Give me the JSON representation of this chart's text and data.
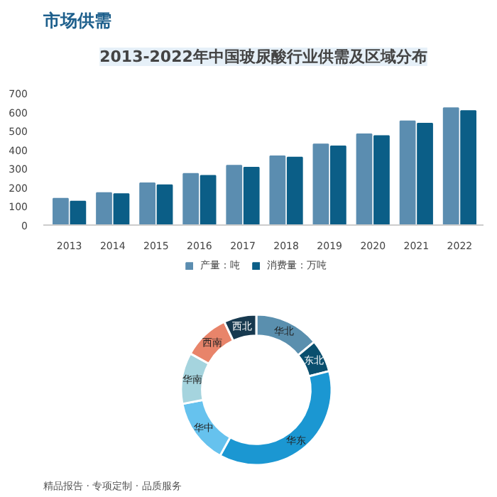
{
  "chart_data": [
    {
      "type": "bar",
      "title": "2013-2022年中国玻尿酸行业供需及区域分布",
      "annotations": [
        "市场供需"
      ],
      "categories": [
        "2013",
        "2014",
        "2015",
        "2016",
        "2017",
        "2018",
        "2019",
        "2020",
        "2021",
        "2022"
      ],
      "series": [
        {
          "name": "产量：吨",
          "color": "#5b8db0",
          "values": [
            140,
            170,
            222,
            272,
            315,
            365,
            428,
            482,
            550,
            620
          ]
        },
        {
          "name": "消费量：万吨",
          "color": "#0b5e87",
          "values": [
            125,
            165,
            212,
            262,
            305,
            358,
            418,
            472,
            538,
            605
          ]
        }
      ],
      "ylim": [
        0,
        700
      ],
      "yticks": [
        0,
        100,
        200,
        300,
        400,
        500,
        600,
        700
      ],
      "legend": "bottom"
    },
    {
      "type": "donut",
      "annotations": [
        "精品报告 · 专项定制 · 品质服务"
      ],
      "categories": [
        "华北",
        "东北",
        "华东",
        "华中",
        "华南",
        "西南",
        "西北"
      ],
      "values": [
        14,
        7,
        37,
        14,
        11,
        10,
        7
      ],
      "colors": [
        "#5a8fae",
        "#0a4f6e",
        "#1b97d2",
        "#66c2ee",
        "#a5d4de",
        "#e8846a",
        "#17394f"
      ]
    }
  ]
}
